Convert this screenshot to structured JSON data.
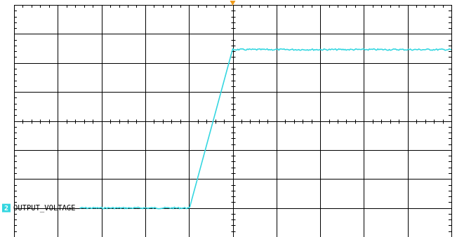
{
  "chart_data": {
    "type": "line",
    "title": "",
    "xlabel": "",
    "ylabel": "",
    "grid": true,
    "x_divisions": 10,
    "y_divisions": 8,
    "xlim": [
      -5,
      5
    ],
    "ylim": [
      -4,
      4
    ],
    "trigger_marker_x": 0,
    "series": [
      {
        "name": "OUTPUT_VOLTAGE",
        "channel": "2",
        "color": "#33d6e0",
        "x": [
          -3.5,
          -1.0,
          -0.98,
          0.0,
          0.02,
          5.0
        ],
        "y": [
          -3.0,
          -3.0,
          -2.96,
          2.46,
          2.46,
          2.46
        ]
      }
    ],
    "colors": {
      "trigger_marker": "#ee9a1a",
      "channel_badge": "#33d6e0",
      "grid": "#000000",
      "background": "#ffffff"
    }
  }
}
